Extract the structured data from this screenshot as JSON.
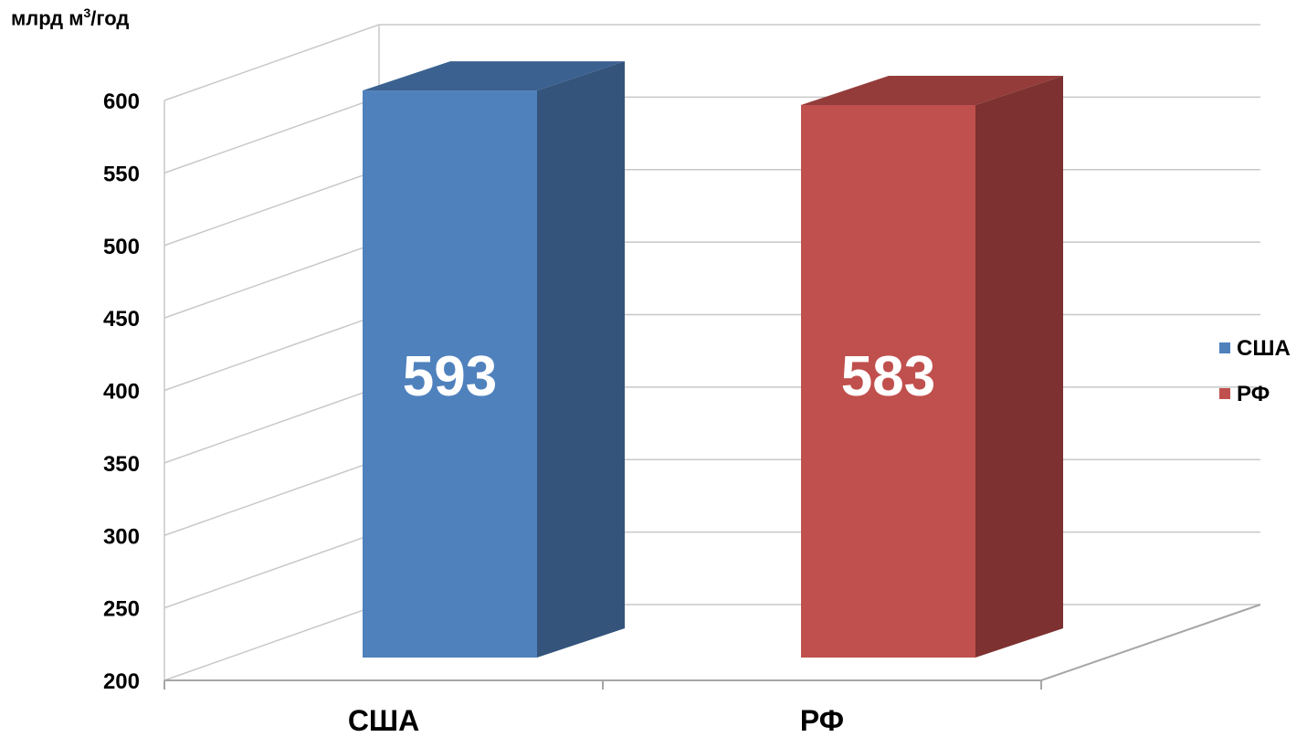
{
  "chart_data": {
    "type": "bar",
    "unit_label_main": "млрд м",
    "unit_label_sup": "3",
    "unit_label_tail": "/год",
    "categories": [
      "США",
      "РФ"
    ],
    "values": [
      593,
      583
    ],
    "value_labels": [
      "593",
      "583"
    ],
    "ylim": [
      200,
      600
    ],
    "yticks": [
      200,
      250,
      300,
      350,
      400,
      450,
      500,
      550,
      600
    ],
    "grid": true,
    "legend_position": "right",
    "legend": [
      {
        "name": "США",
        "color": "#4f81bd"
      },
      {
        "name": "РФ",
        "color": "#c0504d"
      }
    ],
    "colors": {
      "usa_front": "#4f81bd",
      "usa_side": "#34547b",
      "usa_top": "#3b6190",
      "rf_front": "#c0504d",
      "rf_side": "#7d3131",
      "rf_top": "#943c3a"
    }
  }
}
